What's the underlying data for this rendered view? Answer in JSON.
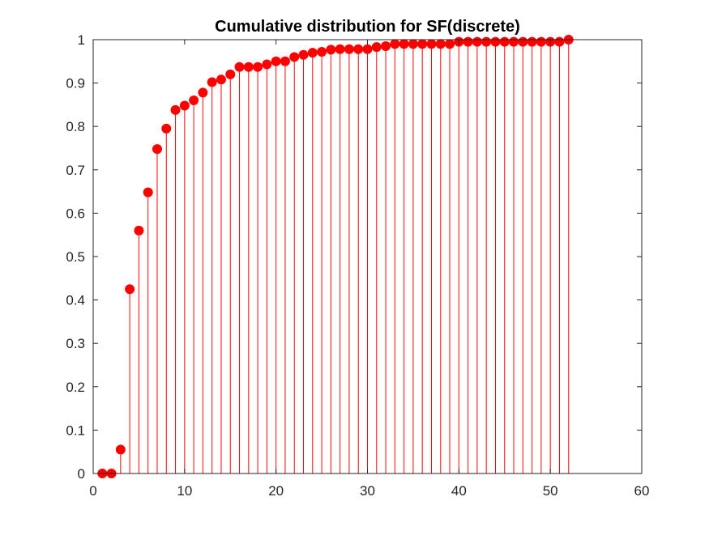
{
  "chart_data": {
    "type": "stem",
    "title": "Cumulative distribution for SF(discrete)",
    "xlabel": "",
    "ylabel": "",
    "xlim": [
      0,
      60
    ],
    "ylim": [
      0,
      1
    ],
    "xticks": [
      0,
      10,
      20,
      30,
      40,
      50,
      60
    ],
    "yticks": [
      0,
      0.1,
      0.2,
      0.3,
      0.4,
      0.5,
      0.6,
      0.7,
      0.8,
      0.9,
      1
    ],
    "grid": false,
    "legend": "none",
    "series": [
      {
        "color": "#ff0000",
        "marker": "filled-circle",
        "x": [
          1,
          2,
          3,
          4,
          5,
          6,
          7,
          8,
          9,
          10,
          11,
          12,
          13,
          14,
          15,
          16,
          17,
          18,
          19,
          20,
          21,
          22,
          23,
          24,
          25,
          26,
          27,
          28,
          29,
          30,
          31,
          32,
          33,
          34,
          35,
          36,
          37,
          38,
          39,
          40,
          41,
          42,
          43,
          44,
          45,
          46,
          47,
          48,
          49,
          50,
          51,
          52
        ],
        "y": [
          0.0,
          0.0,
          0.055,
          0.425,
          0.56,
          0.648,
          0.748,
          0.795,
          0.838,
          0.848,
          0.86,
          0.878,
          0.902,
          0.908,
          0.92,
          0.937,
          0.937,
          0.937,
          0.943,
          0.95,
          0.95,
          0.96,
          0.965,
          0.97,
          0.972,
          0.977,
          0.978,
          0.978,
          0.978,
          0.978,
          0.983,
          0.985,
          0.99,
          0.99,
          0.99,
          0.99,
          0.99,
          0.99,
          0.99,
          0.995,
          0.995,
          0.995,
          0.995,
          0.995,
          0.995,
          0.995,
          0.995,
          0.995,
          0.995,
          0.995,
          0.995,
          1.0
        ]
      }
    ]
  }
}
